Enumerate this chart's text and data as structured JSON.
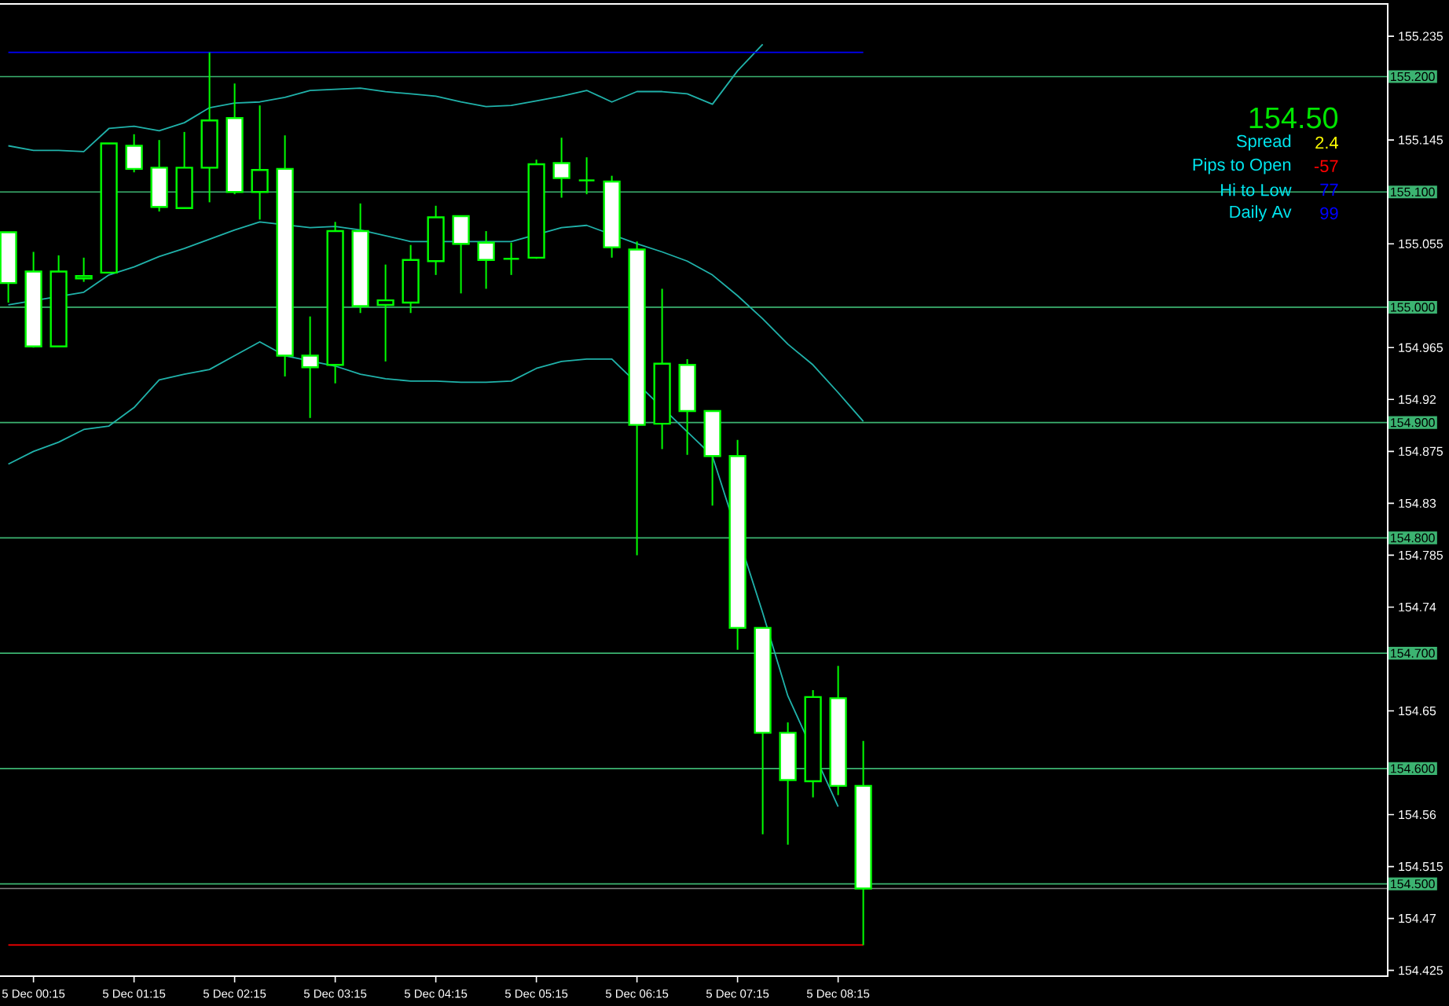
{
  "chart_data": {
    "type": "candlestick",
    "categories": [
      null,
      "5 Dec 00:15",
      null,
      null,
      null,
      "5 Dec 01:15",
      null,
      null,
      null,
      "5 Dec 02:15",
      null,
      null,
      null,
      "5 Dec 03:15",
      null,
      null,
      null,
      "5 Dec 04:15",
      null,
      null,
      null,
      "5 Dec 05:15",
      null,
      null,
      null,
      "5 Dec 06:15",
      null,
      null,
      null,
      "5 Dec 07:15",
      null,
      null,
      null,
      "5 Dec 08:15",
      null
    ],
    "ohlc": [
      [
        155.065,
        155.065,
        155.004,
        155.021
      ],
      [
        155.031,
        155.048,
        154.965,
        154.966
      ],
      [
        154.966,
        155.045,
        154.966,
        155.031
      ],
      [
        155.025,
        155.043,
        155.022,
        155.027
      ],
      [
        155.03,
        155.142,
        155.03,
        155.142
      ],
      [
        155.14,
        155.15,
        155.117,
        155.12
      ],
      [
        155.121,
        155.145,
        155.083,
        155.087
      ],
      [
        155.086,
        155.152,
        155.086,
        155.121
      ],
      [
        155.121,
        155.221,
        155.091,
        155.162
      ],
      [
        155.164,
        155.194,
        155.098,
        155.1
      ],
      [
        155.1,
        155.175,
        155.076,
        155.119
      ],
      [
        155.12,
        155.149,
        154.94,
        154.958
      ],
      [
        154.958,
        154.992,
        154.904,
        154.948
      ],
      [
        154.95,
        155.074,
        154.934,
        155.066
      ],
      [
        155.066,
        155.09,
        154.995,
        155.001
      ],
      [
        155.002,
        155.037,
        154.953,
        155.006
      ],
      [
        155.004,
        155.054,
        154.995,
        155.041
      ],
      [
        155.04,
        155.088,
        155.028,
        155.078
      ],
      [
        155.079,
        155.079,
        155.012,
        155.055
      ],
      [
        155.056,
        155.066,
        155.016,
        155.041
      ],
      [
        155.042,
        155.056,
        155.028,
        155.042
      ],
      [
        155.043,
        155.128,
        155.042,
        155.124
      ],
      [
        155.125,
        155.147,
        155.095,
        155.112
      ],
      [
        155.11,
        155.13,
        155.098,
        155.11
      ],
      [
        155.109,
        155.114,
        155.043,
        155.052
      ],
      [
        155.05,
        155.057,
        154.785,
        154.898
      ],
      [
        154.899,
        155.016,
        154.877,
        154.951
      ],
      [
        154.95,
        154.955,
        154.872,
        154.91
      ],
      [
        154.91,
        154.91,
        154.828,
        154.871
      ],
      [
        154.871,
        154.885,
        154.703,
        154.722
      ],
      [
        154.722,
        154.722,
        154.543,
        154.631
      ],
      [
        154.631,
        154.64,
        154.534,
        154.59
      ],
      [
        154.589,
        154.668,
        154.575,
        154.662
      ],
      [
        154.661,
        154.689,
        154.577,
        154.585
      ],
      [
        154.585,
        154.624,
        154.447,
        154.496
      ]
    ],
    "series": [
      {
        "type": "line",
        "color": "#20b2aa",
        "values": [
          155.14,
          155.136,
          155.136,
          155.135,
          155.155,
          155.157,
          155.153,
          155.16,
          155.173,
          155.177,
          155.178,
          155.182,
          155.188,
          155.189,
          155.19,
          155.187,
          155.185,
          155.183,
          155.178,
          155.174,
          155.175,
          155.179,
          155.183,
          155.188,
          155.178,
          155.187,
          155.187,
          155.185,
          155.176,
          155.205,
          155.228,
          null,
          null,
          null,
          null
        ]
      },
      {
        "type": "line",
        "color": "#20b2aa",
        "values": [
          155.002,
          null,
          null,
          155.013,
          155.028,
          155.035,
          155.044,
          155.051,
          155.059,
          155.067,
          155.074,
          null,
          155.069,
          155.07,
          155.067,
          155.062,
          155.057,
          null,
          null,
          null,
          155.057,
          null,
          155.069,
          155.071,
          null,
          155.055,
          155.048,
          155.04,
          155.028,
          155.01,
          154.99,
          154.968,
          154.95,
          154.926,
          154.901
        ]
      },
      {
        "type": "line",
        "color": "#20b2aa",
        "values": [
          154.864,
          154.875,
          154.883,
          154.894,
          154.897,
          154.913,
          154.937,
          154.942,
          154.946,
          154.958,
          154.97,
          154.958,
          null,
          154.949,
          154.942,
          154.938,
          154.936,
          154.936,
          154.935,
          154.935,
          154.936,
          154.947,
          154.953,
          154.955,
          154.955,
          null,
          null,
          154.892,
          154.871,
          null,
          154.735,
          154.663,
          null,
          154.567,
          null
        ]
      },
      {
        "type": "line",
        "color": "#0000ff",
        "values": [
          155.221,
          155.221,
          155.221,
          155.221,
          155.221,
          155.221,
          155.221,
          155.221,
          155.221,
          155.221,
          155.221,
          155.221,
          155.221,
          155.221,
          155.221,
          155.221,
          155.221,
          155.221,
          155.221,
          155.221,
          155.221,
          155.221,
          155.221,
          155.221,
          155.221,
          155.221,
          155.221,
          155.221,
          155.221,
          155.221,
          155.221,
          155.221,
          155.221,
          155.221,
          155.221
        ]
      },
      {
        "type": "line",
        "color": "#ff0000",
        "values": [
          154.447,
          154.447,
          154.447,
          154.447,
          154.447,
          154.447,
          154.447,
          154.447,
          154.447,
          154.447,
          154.447,
          154.447,
          154.447,
          154.447,
          154.447,
          154.447,
          154.447,
          154.447,
          154.447,
          154.447,
          154.447,
          154.447,
          154.447,
          154.447,
          154.447,
          154.447,
          154.447,
          154.447,
          154.447,
          154.447,
          154.447,
          154.447,
          154.447,
          154.447,
          154.447
        ]
      }
    ],
    "ylim": [
      154.42,
      155.263
    ],
    "yticks": [
      155.235,
      155.145,
      155.055,
      154.965,
      154.92,
      154.875,
      154.83,
      154.785,
      154.74,
      154.65,
      154.56,
      154.515,
      154.47,
      154.425
    ],
    "ref_lines": [
      {
        "axis": "y",
        "value": 155.2,
        "label": "155.200",
        "color": "#3cb371"
      },
      {
        "axis": "y",
        "value": 155.1,
        "label": "155.100",
        "color": "#3cb371"
      },
      {
        "axis": "y",
        "value": 155.0,
        "label": "155.000",
        "color": "#3cb371"
      },
      {
        "axis": "y",
        "value": 154.9,
        "label": "154.900",
        "color": "#3cb371"
      },
      {
        "axis": "y",
        "value": 154.8,
        "label": "154.800",
        "color": "#3cb371"
      },
      {
        "axis": "y",
        "value": 154.7,
        "label": "154.700",
        "color": "#3cb371"
      },
      {
        "axis": "y",
        "value": 154.6,
        "label": "154.600",
        "color": "#3cb371"
      },
      {
        "axis": "y",
        "value": 154.5,
        "label": "154.500",
        "color": "#3cb371"
      },
      {
        "axis": "y",
        "value": 154.496,
        "color": "#808080"
      }
    ],
    "annotations": [
      "154.50",
      "Spread",
      "2.4",
      "Pips to Open",
      "-57",
      "Hi to Low",
      "77",
      "Daily Av",
      "99"
    ]
  }
}
